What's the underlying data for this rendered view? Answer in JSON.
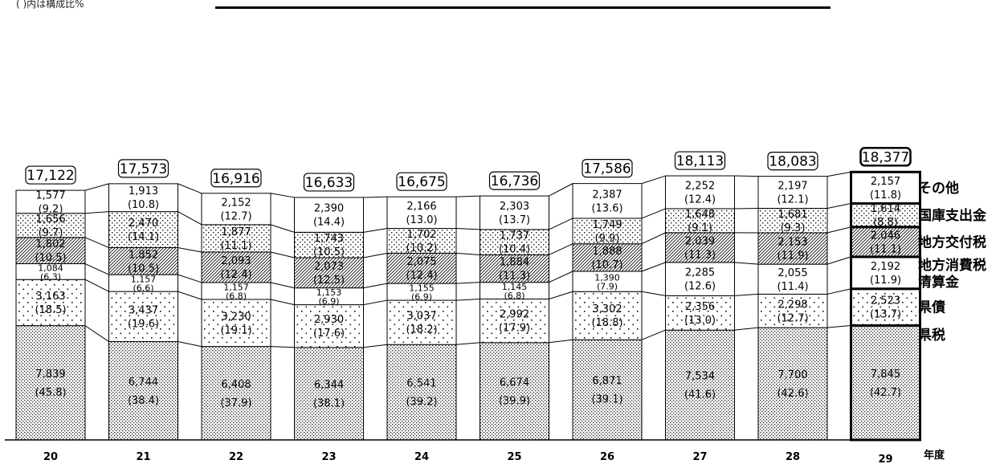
{
  "note": "( )内は構成比%",
  "chart_data": {
    "type": "stacked_bar",
    "xlabel": "年度",
    "categories": [
      "20",
      "21",
      "22",
      "23",
      "24",
      "25",
      "26",
      "27",
      "28",
      "29"
    ],
    "totals": [
      "17,122",
      "17,573",
      "16,916",
      "16,633",
      "16,675",
      "16,736",
      "17,586",
      "18,113",
      "18,083",
      "18,377"
    ],
    "series": [
      {
        "name": "県税",
        "values": [
          7839,
          6744,
          6408,
          6344,
          6541,
          6674,
          6871,
          7534,
          7700,
          7845
        ],
        "labels": [
          "7,839",
          "6,744",
          "6,408",
          "6,344",
          "6,541",
          "6,674",
          "6,871",
          "7,534",
          "7,700",
          "7,845"
        ],
        "pcts": [
          "(45.8)",
          "(38.4)",
          "(37.9)",
          "(38.1)",
          "(39.2)",
          "(39.9)",
          "(39.1)",
          "(41.6)",
          "(42.6)",
          "(42.7)"
        ]
      },
      {
        "name": "県債",
        "values": [
          3163,
          3437,
          3230,
          2930,
          3037,
          2992,
          3302,
          2356,
          2298,
          2523
        ],
        "labels": [
          "3,163",
          "3,437",
          "3,230",
          "2,930",
          "3,037",
          "2,992",
          "3,302",
          "2,356",
          "2,298",
          "2,523"
        ],
        "pcts": [
          "(18.5)",
          "(19.6)",
          "(19.1)",
          "(17.6)",
          "(18.2)",
          "(17.9)",
          "(18.8)",
          "(13.0)",
          "(12.7)",
          "(13.7)"
        ]
      },
      {
        "name": "地方消費税清算金",
        "values": [
          1084,
          1157,
          1157,
          1153,
          1155,
          1145,
          1390,
          2285,
          2055,
          2192
        ],
        "labels": [
          "1,084",
          "1,157",
          "1,157",
          "1,153",
          "1,155",
          "1,145",
          "1,390",
          "2,285",
          "2,055",
          "2,192"
        ],
        "pcts": [
          "(6.3)",
          "(6.6)",
          "(6.8)",
          "(6.9)",
          "(6.9)",
          "(6.8)",
          "(7.9)",
          "(12.6)",
          "(11.4)",
          "(11.9)"
        ]
      },
      {
        "name": "地方交付税",
        "values": [
          1802,
          1852,
          2093,
          2073,
          2075,
          1884,
          1888,
          2039,
          2153,
          2046
        ],
        "labels": [
          "1,802",
          "1,852",
          "2,093",
          "2,073",
          "2,075",
          "1,884",
          "1,888",
          "2,039",
          "2,153",
          "2,046"
        ],
        "pcts": [
          "(10.5)",
          "(10.5)",
          "(12.4)",
          "(12.5)",
          "(12.4)",
          "(11.3)",
          "(10.7)",
          "(11.3)",
          "(11.9)",
          "(11.1)"
        ]
      },
      {
        "name": "国庫支出金",
        "values": [
          1656,
          2470,
          1877,
          1743,
          1702,
          1737,
          1749,
          1648,
          1681,
          1614
        ],
        "labels": [
          "1,656",
          "2,470",
          "1,877",
          "1,743",
          "1,702",
          "1,737",
          "1,749",
          "1,648",
          "1,681",
          "1,614"
        ],
        "pcts": [
          "(9.7)",
          "(14.1)",
          "(11.1)",
          "(10.5)",
          "(10.2)",
          "(10.4)",
          "(9.9)",
          "(9.1)",
          "(9.3)",
          "(8.8)"
        ]
      },
      {
        "name": "その他",
        "values": [
          1577,
          1913,
          2152,
          2390,
          2166,
          2303,
          2387,
          2252,
          2197,
          2157
        ],
        "labels": [
          "1,577",
          "1,913",
          "2,152",
          "2,390",
          "2,166",
          "2,303",
          "2,387",
          "2,252",
          "2,197",
          "2,157"
        ],
        "pcts": [
          "(9.2)",
          "(10.8)",
          "(12.7)",
          "(14.4)",
          "(13.0)",
          "(13.7)",
          "(13.6)",
          "(12.4)",
          "(12.1)",
          "(11.8)"
        ]
      }
    ],
    "legend": [
      {
        "lines": [
          "その他"
        ]
      },
      {
        "lines": [
          "国庫支出金"
        ]
      },
      {
        "lines": [
          "地方交付税"
        ]
      },
      {
        "lines": [
          "地方消費税",
          "清算金"
        ]
      },
      {
        "lines": [
          "県債"
        ]
      },
      {
        "lines": [
          "県税"
        ]
      }
    ],
    "highlight_category": "29",
    "colors": {
      "stroke": "#000000",
      "background": "#ffffff",
      "dots": "#000000"
    }
  }
}
